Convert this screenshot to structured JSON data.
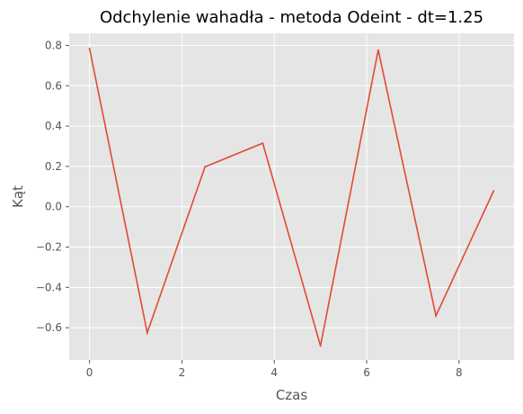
{
  "chart_data": {
    "type": "line",
    "title": "Odchylenie wahadła - metoda Odeint - dt=1.25",
    "xlabel": "Czas",
    "ylabel": "Kąt",
    "xlim": [
      -0.44,
      9.19
    ],
    "ylim": [
      -0.76,
      0.86
    ],
    "xticks": [
      0,
      2,
      4,
      6,
      8
    ],
    "yticks": [
      -0.6,
      -0.4,
      -0.2,
      0.0,
      0.2,
      0.4,
      0.6,
      0.8
    ],
    "xtick_labels": [
      "0",
      "2",
      "4",
      "6",
      "8"
    ],
    "ytick_labels": [
      "−0.6",
      "−0.4",
      "−0.2",
      "0.0",
      "0.2",
      "0.4",
      "0.6",
      "0.8"
    ],
    "grid": true,
    "series": [
      {
        "color": "#E24A33",
        "x": [
          0,
          1.25,
          2.5,
          3.75,
          5.0,
          6.25,
          7.5,
          8.75
        ],
        "y": [
          0.785,
          -0.625,
          0.198,
          0.315,
          -0.69,
          0.777,
          -0.541,
          0.079
        ]
      }
    ],
    "style": {
      "plot_background": "#E5E5E5",
      "grid_color": "#FFFFFF"
    }
  }
}
